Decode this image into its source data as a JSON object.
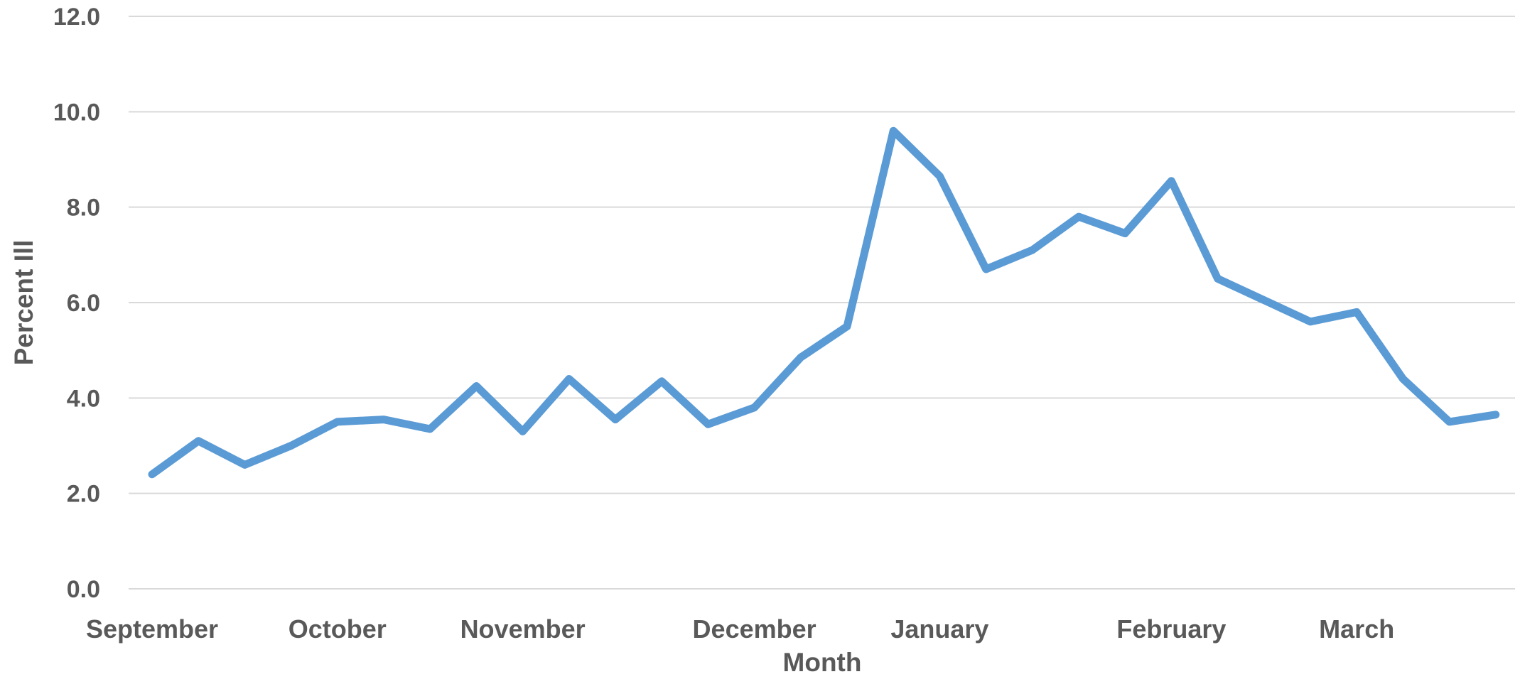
{
  "chart_data": {
    "type": "line",
    "title": "",
    "xlabel": "Month",
    "ylabel": "Percent Ill",
    "ylim": [
      0,
      12
    ],
    "yticks": [
      0,
      2,
      4,
      6,
      8,
      10,
      12
    ],
    "ytick_labels": [
      "0.0",
      "2.0",
      "4.0",
      "6.0",
      "8.0",
      "10.0",
      "12.0"
    ],
    "grid": true,
    "legend": "none",
    "month_labels": [
      {
        "label": "September",
        "index": 0
      },
      {
        "label": "October",
        "index": 4
      },
      {
        "label": "November",
        "index": 8
      },
      {
        "label": "December",
        "index": 13
      },
      {
        "label": "January",
        "index": 17
      },
      {
        "label": "February",
        "index": 22
      },
      {
        "label": "March",
        "index": 26
      }
    ],
    "series": [
      {
        "color": "#5b9bd5",
        "values": [
          2.4,
          3.1,
          2.6,
          3.0,
          3.5,
          3.55,
          3.35,
          4.25,
          3.3,
          4.4,
          3.55,
          4.35,
          3.45,
          3.8,
          4.85,
          5.5,
          9.6,
          8.65,
          6.7,
          7.1,
          7.8,
          7.45,
          8.55,
          6.5,
          6.05,
          5.6,
          5.8,
          4.4,
          3.5,
          3.65
        ]
      }
    ]
  }
}
